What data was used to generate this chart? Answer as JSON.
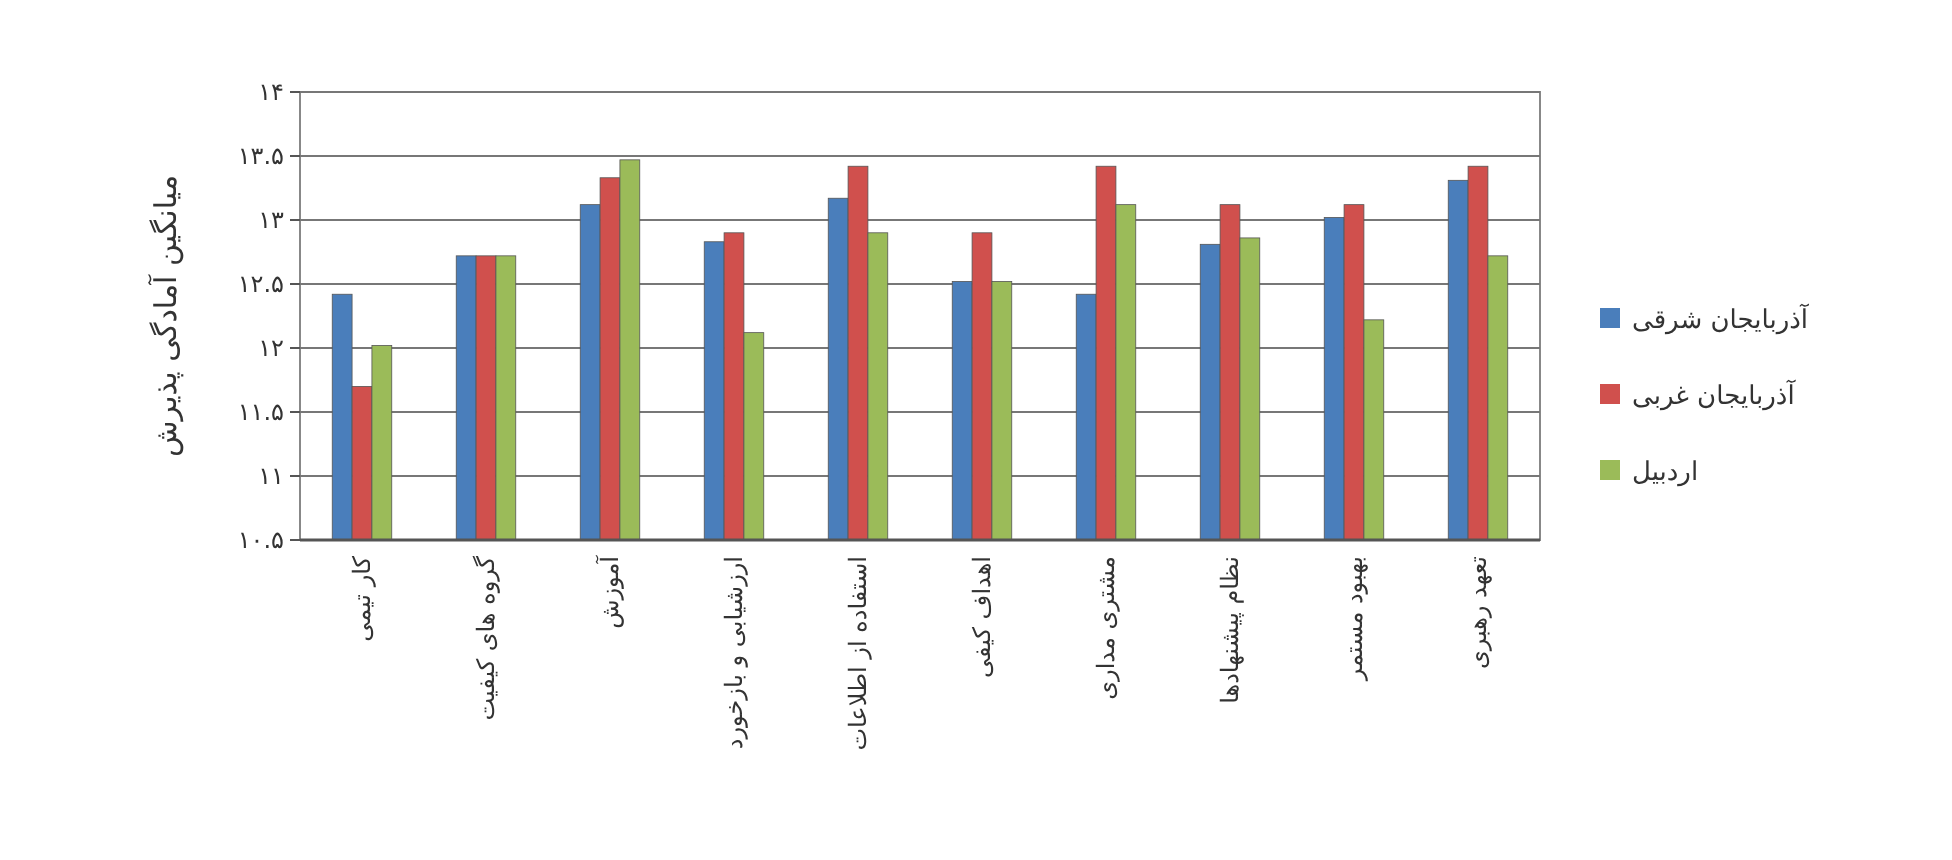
{
  "chart_data": {
    "type": "bar",
    "ylabel": "میانگین آمادگی پذیرش",
    "categories": [
      "کار تیمی",
      "گروه های کیفیت",
      "آموزش",
      "ارزشیابی و بازخورد",
      "استفاده از اطلاعات",
      "اهداف کیفی",
      "مشتری مداری",
      "نظام پیشنهادها",
      "بهبود مستمر",
      "تعهد رهبری"
    ],
    "series": [
      {
        "name": "آذربایجان شرقی",
        "color": "#4a7ebb",
        "values": [
          12.42,
          12.72,
          13.12,
          12.83,
          13.17,
          12.52,
          12.42,
          12.81,
          13.02,
          13.31
        ]
      },
      {
        "name": "آذربایجان غربی",
        "color": "#d0504d",
        "values": [
          11.7,
          12.72,
          13.33,
          12.9,
          13.42,
          12.9,
          13.42,
          13.12,
          13.12,
          13.42
        ]
      },
      {
        "name": "اردبیل",
        "color": "#9bbb59",
        "values": [
          12.02,
          12.72,
          13.47,
          12.12,
          12.9,
          12.52,
          13.12,
          12.86,
          12.22,
          12.72
        ]
      }
    ],
    "ylim": [
      10.5,
      14
    ],
    "yticks": [
      {
        "value": 10.5,
        "label": "۱۰.۵"
      },
      {
        "value": 11,
        "label": "۱۱"
      },
      {
        "value": 11.5,
        "label": "۱۱.۵"
      },
      {
        "value": 12,
        "label": "۱۲"
      },
      {
        "value": 12.5,
        "label": "۱۲.۵"
      },
      {
        "value": 13,
        "label": "۱۳"
      },
      {
        "value": 13.5,
        "label": "۱۳.۵"
      },
      {
        "value": 14,
        "label": "۱۴"
      }
    ],
    "grid": "y",
    "legend": "right"
  }
}
